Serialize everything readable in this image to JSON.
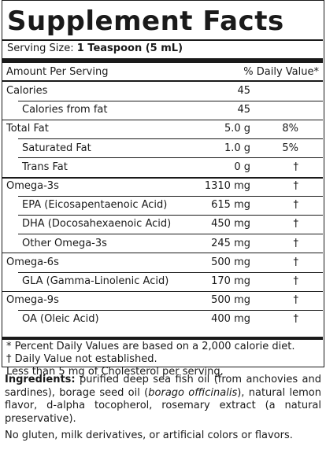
{
  "title": "Supplement Facts",
  "serving": {
    "label": "Serving Size:",
    "value": "1 Teaspoon (5 mL)"
  },
  "header": {
    "amount": "Amount Per Serving",
    "dv": "% Daily Value*"
  },
  "rows": [
    {
      "label": "Calories",
      "amount": "45",
      "dv": ""
    },
    {
      "label": "Calories from fat",
      "amount": "45",
      "dv": ""
    },
    {
      "label": "Total Fat",
      "amount": "5.0 g",
      "dv": "8%"
    },
    {
      "label": "Saturated Fat",
      "amount": "1.0 g",
      "dv": "5%"
    },
    {
      "label": "Trans Fat",
      "amount": "0 g",
      "dv": "†"
    },
    {
      "label": "Omega-3s",
      "amount": "1310 mg",
      "dv": "†"
    },
    {
      "label": "EPA (Eicosapentaenoic Acid)",
      "amount": "615 mg",
      "dv": "†"
    },
    {
      "label": "DHA (Docosahexaenoic Acid)",
      "amount": "450 mg",
      "dv": "†"
    },
    {
      "label": "Other Omega-3s",
      "amount": "245 mg",
      "dv": "†"
    },
    {
      "label": "Omega-6s",
      "amount": "500 mg",
      "dv": "†"
    },
    {
      "label": "GLA (Gamma-Linolenic Acid)",
      "amount": "170 mg",
      "dv": "†"
    },
    {
      "label": "Omega-9s",
      "amount": "500 mg",
      "dv": "†"
    },
    {
      "label": "OA (Oleic Acid)",
      "amount": "400 mg",
      "dv": "†"
    }
  ],
  "footnotes": {
    "dv_note": "*  Percent Daily Values are based on a 2,000 calorie diet.",
    "dagger_note": "†  Daily Value not established.",
    "cholesterol_note": "Less than 5 mg of Cholesterol per serving."
  },
  "ingredients": {
    "label": "Ingredients:",
    "text_a": " purified deep sea fish oil (from anchovies and sardines), borage seed oil (",
    "latin": "borago officinalis",
    "text_b": "), natural lemon flavor, d-alpha tocopherol, rosemary extract (a natural preservative)."
  },
  "free_from": "No gluten, milk derivatives, or artificial colors or flavors."
}
